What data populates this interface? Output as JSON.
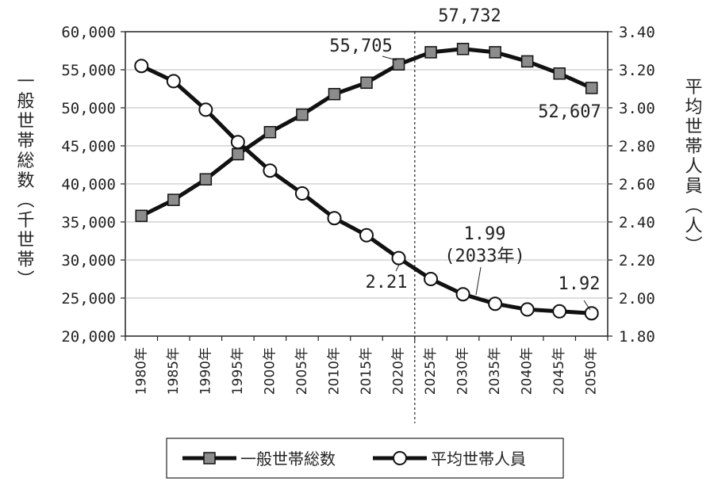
{
  "chart_data": {
    "type": "line",
    "categories": [
      "1980年",
      "1985年",
      "1990年",
      "1995年",
      "2000年",
      "2005年",
      "2010年",
      "2015年",
      "2020年",
      "2025年",
      "2030年",
      "2035年",
      "2040年",
      "2045年",
      "2050年"
    ],
    "series": [
      {
        "name": "一般世帯総数",
        "axis": "left",
        "marker": "square",
        "values": [
          35800,
          37900,
          40600,
          43900,
          46800,
          49100,
          51800,
          53300,
          55705,
          57300,
          57732,
          57300,
          56100,
          54500,
          52607
        ]
      },
      {
        "name": "平均世帯人員",
        "axis": "right",
        "marker": "circle",
        "values": [
          3.22,
          3.14,
          2.99,
          2.82,
          2.67,
          2.55,
          2.42,
          2.33,
          2.21,
          2.1,
          2.02,
          1.97,
          1.94,
          1.93,
          1.92
        ]
      }
    ],
    "ylabel_left": "一般世帯総数（千世帯）",
    "ylabel_right": "平均世帯人員（人）",
    "ylim_left": [
      20000,
      60000
    ],
    "yticks_left": [
      "20,000",
      "25,000",
      "30,000",
      "35,000",
      "40,000",
      "45,000",
      "50,000",
      "55,000",
      "60,000"
    ],
    "ylim_right": [
      1.8,
      3.4
    ],
    "yticks_right": [
      "1.80",
      "2.00",
      "2.20",
      "2.40",
      "2.60",
      "2.80",
      "3.00",
      "3.20",
      "3.40"
    ],
    "grid": true,
    "divider_after": "2020年",
    "annotations": {
      "households_2020": "55,705",
      "households_peak": "57,732",
      "households_2050": "52,607",
      "avg_2020": "2.21",
      "avg_2033": "1.99",
      "avg_2033_note": "(2033年)",
      "avg_2050": "1.92"
    },
    "legend": {
      "position": "bottom",
      "items": [
        "一般世帯総数",
        "平均世帯人員"
      ]
    }
  }
}
